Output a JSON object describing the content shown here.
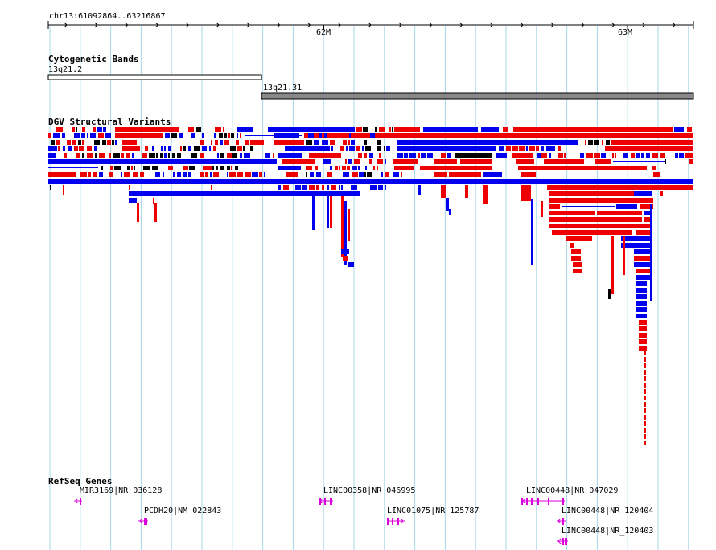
{
  "ruler": {
    "region": "chr13:61092864..63216867",
    "ticks": [
      {
        "label": "62M",
        "pos": 62000000
      },
      {
        "label": "63M",
        "pos": 63000000
      }
    ]
  },
  "tracks": {
    "cytoband": {
      "title": "Cytogenetic Bands",
      "bands": [
        {
          "name": "13q21.2",
          "start": 61092864,
          "end": 61795000,
          "stain": "gneg"
        },
        {
          "name": "13q21.31",
          "start": 61795000,
          "end": 63216867,
          "stain": "gpos"
        }
      ]
    },
    "dgv": {
      "title": "DGV Structural Variants",
      "legend_colors": {
        "loss": "#ee0000",
        "gain": "#0000ee",
        "both": "#000000"
      }
    },
    "refseq": {
      "title": "RefSeq Genes",
      "color": "#dd00dd",
      "genes": [
        {
          "label": "MIR3169|NR_036128"
        },
        {
          "label": "PCDH20|NM_022843"
        },
        {
          "label": "LINC00358|NR_046995"
        },
        {
          "label": "LINC01075|NR_125787"
        },
        {
          "label": "LINC00448|NR_047029"
        },
        {
          "label": "LINC00448|NR_120404"
        },
        {
          "label": "LINC00448|NR_120403"
        }
      ]
    }
  }
}
